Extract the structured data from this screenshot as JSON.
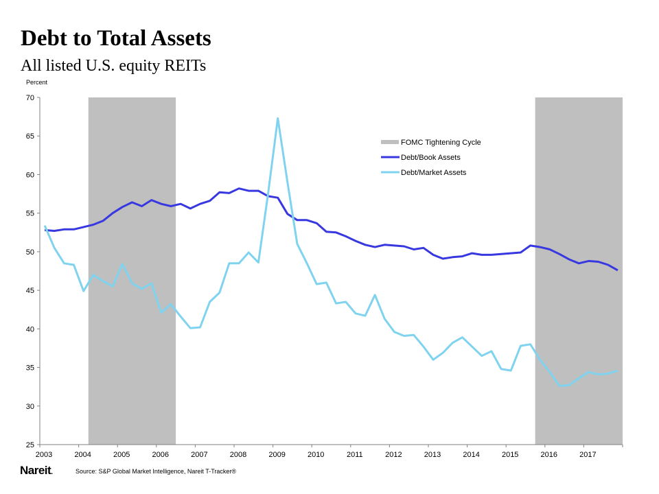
{
  "title": "Debt to Total Assets",
  "subtitle": "All listed U.S. equity REITs",
  "logo_text": "Nareit.",
  "source": "Source: S&P Global Market Intelligence, Nareit T-Tracker®",
  "chart_data": {
    "type": "line",
    "ylabel": "Percent",
    "ylim": [
      25,
      70
    ],
    "yticks": [
      25,
      30,
      35,
      40,
      45,
      50,
      55,
      60,
      65,
      70
    ],
    "x_tick_labels": [
      "2003",
      "2004",
      "2005",
      "2006",
      "2007",
      "2008",
      "2009",
      "2010",
      "2011",
      "2012",
      "2013",
      "2014",
      "2015",
      "2016",
      "2017"
    ],
    "x_frequency": "quarterly",
    "x_range": [
      "2003 Q1",
      "2017 Q4"
    ],
    "grid": false,
    "legend_position": "top-center",
    "shaded_periods": {
      "name": "FOMC Tightening Cycle",
      "color": "#bfbfbf",
      "periods": [
        [
          "2004 Q2",
          "2006 Q2"
        ],
        [
          "2015 Q4",
          "2017 Q4"
        ]
      ]
    },
    "series": [
      {
        "name": "Debt/Book Assets",
        "color": "#3838e0",
        "values": [
          52.8,
          52.7,
          52.9,
          52.9,
          53.2,
          53.5,
          54.0,
          55.0,
          55.8,
          56.4,
          55.9,
          56.7,
          56.2,
          55.9,
          56.2,
          55.6,
          56.2,
          56.6,
          57.7,
          57.6,
          58.2,
          57.9,
          57.9,
          57.2,
          57.0,
          54.9,
          54.1,
          54.1,
          53.7,
          52.6,
          52.5,
          52.0,
          51.4,
          50.9,
          50.6,
          50.9,
          50.8,
          50.7,
          50.3,
          50.5,
          49.6,
          49.1,
          49.3,
          49.4,
          49.8,
          49.6,
          49.6,
          49.7,
          49.8,
          49.9,
          50.8,
          50.6,
          50.3,
          49.7,
          49.0,
          48.5,
          48.8,
          48.7,
          48.3,
          47.6
        ]
      },
      {
        "name": "Debt/Market Assets",
        "color": "#7fd3ef",
        "values": [
          53.4,
          50.5,
          48.5,
          48.3,
          44.9,
          47.0,
          46.2,
          45.5,
          48.4,
          45.9,
          45.2,
          45.9,
          42.1,
          43.2,
          41.6,
          40.1,
          40.2,
          43.5,
          44.7,
          48.5,
          48.5,
          49.9,
          48.6,
          57.5,
          67.3,
          59.0,
          51.0,
          48.5,
          45.8,
          46.0,
          43.3,
          43.5,
          42.0,
          41.7,
          44.4,
          41.3,
          39.6,
          39.1,
          39.2,
          37.7,
          36.0,
          36.9,
          38.2,
          38.9,
          37.7,
          36.5,
          37.1,
          34.8,
          34.6,
          37.8,
          38.0,
          36.0,
          34.4,
          32.6,
          32.7,
          33.6,
          34.4,
          34.1,
          34.2,
          34.6
        ]
      }
    ]
  }
}
